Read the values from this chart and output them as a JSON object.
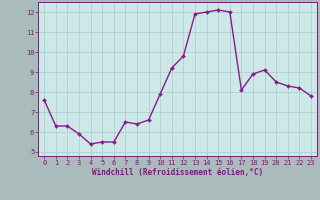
{
  "x": [
    0,
    1,
    2,
    3,
    4,
    5,
    6,
    7,
    8,
    9,
    10,
    11,
    12,
    13,
    14,
    15,
    16,
    17,
    18,
    19,
    20,
    21,
    22,
    23
  ],
  "y": [
    7.6,
    6.3,
    6.3,
    5.9,
    5.4,
    5.5,
    5.5,
    6.5,
    6.4,
    6.6,
    7.9,
    9.2,
    9.8,
    11.9,
    12.0,
    12.1,
    12.0,
    8.1,
    8.9,
    9.1,
    8.5,
    8.3,
    8.2,
    7.8
  ],
  "line_color": "#8b1a8b",
  "marker": "D",
  "marker_size": 2.0,
  "background_color": "#cce8e8",
  "grid_color": "#aacccc",
  "xlabel": "Windchill (Refroidissement éolien,°C)",
  "xlabel_color": "#7b1a7b",
  "tick_color": "#7b1a7b",
  "spine_color": "#7b1a7b",
  "ylim": [
    4.8,
    12.5
  ],
  "xlim": [
    -0.5,
    23.5
  ],
  "yticks": [
    5,
    6,
    7,
    8,
    9,
    10,
    11,
    12
  ],
  "xticks": [
    0,
    1,
    2,
    3,
    4,
    5,
    6,
    7,
    8,
    9,
    10,
    11,
    12,
    13,
    14,
    15,
    16,
    17,
    18,
    19,
    20,
    21,
    22,
    23
  ],
  "line_width": 1.0,
  "fig_bg_color": "#aabbbb",
  "tick_fontsize": 5.0,
  "xlabel_fontsize": 5.5
}
